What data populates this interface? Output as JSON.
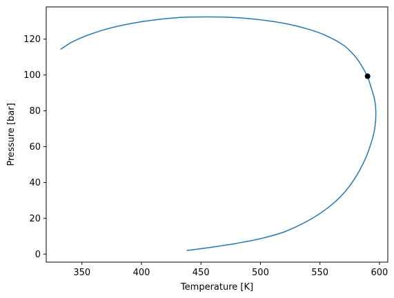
{
  "chart_data": {
    "type": "line",
    "title": "",
    "xlabel": "Temperature [K]",
    "ylabel": "Pressure [bar]",
    "xlim": [
      320,
      607
    ],
    "ylim": [
      -4.5,
      138
    ],
    "xticks": [
      350,
      400,
      450,
      500,
      550,
      600
    ],
    "yticks": [
      0,
      20,
      40,
      60,
      80,
      100,
      120
    ],
    "grid": false,
    "series": [
      {
        "color": "#1f77b4",
        "x": [
          438,
          450,
          465,
          480,
          500,
          520,
          540,
          557,
          570,
          580,
          588,
          593,
          596,
          597,
          596,
          593,
          590,
          586,
          580,
          570,
          555,
          540,
          520,
          500,
          480,
          457,
          430,
          400,
          370,
          345,
          332
        ],
        "y": [
          2,
          3,
          4.4,
          6,
          8.6,
          12.4,
          18.6,
          26,
          34,
          43,
          53,
          62,
          70,
          79,
          86,
          93,
          99,
          104,
          110,
          116.5,
          122,
          125.6,
          128.8,
          130.8,
          132,
          132.4,
          132,
          129.7,
          125.5,
          119.5,
          114.3
        ]
      }
    ],
    "markers": [
      {
        "x": 590,
        "y": 99.3,
        "color": "#000000"
      }
    ]
  }
}
